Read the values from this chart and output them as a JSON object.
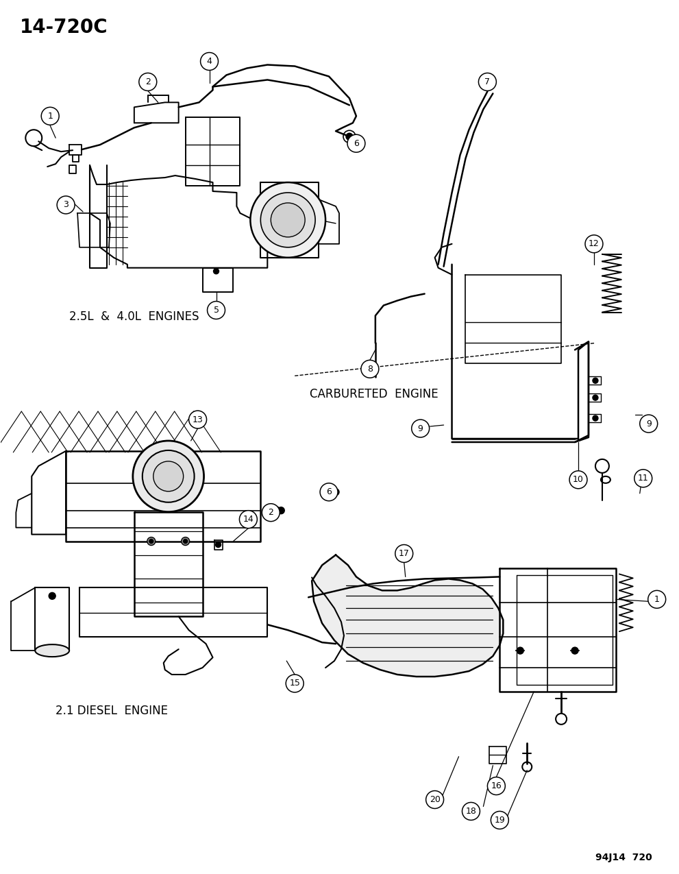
{
  "title": "14-720C",
  "subtitle": "94J14  720",
  "background_color": "#ffffff",
  "text_color": "#000000",
  "labels": {
    "engine_25_40": "2.5L  &  4.0L  ENGINES",
    "carbureted": "CARBURETED  ENGINE",
    "diesel": "2.1 DIESEL  ENGINE"
  },
  "figsize": [
    9.91,
    12.75
  ],
  "dpi": 100
}
